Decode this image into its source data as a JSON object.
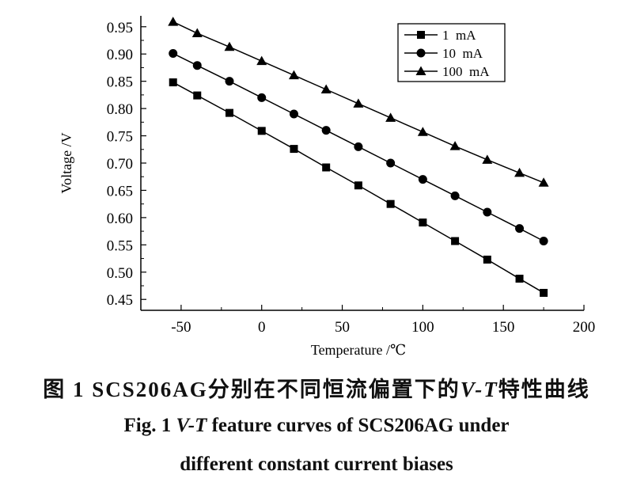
{
  "chart_data": {
    "type": "line",
    "xlabel": "Temperature /℃",
    "ylabel": "Voltage /V",
    "xlim": [
      -75,
      200
    ],
    "ylim": [
      0.43,
      0.97
    ],
    "x_ticks": [
      "-50",
      "0",
      "50",
      "100",
      "150",
      "200"
    ],
    "x_tick_values": [
      -50,
      0,
      50,
      100,
      150,
      200
    ],
    "y_ticks": [
      "0.45",
      "0.50",
      "0.55",
      "0.60",
      "0.65",
      "0.70",
      "0.75",
      "0.80",
      "0.85",
      "0.90",
      "0.95"
    ],
    "y_tick_values": [
      0.45,
      0.5,
      0.55,
      0.6,
      0.65,
      0.7,
      0.75,
      0.8,
      0.85,
      0.9,
      0.95
    ],
    "legend_position": "top-right",
    "grid": false,
    "x": [
      -55,
      -40,
      -20,
      0,
      20,
      40,
      60,
      80,
      100,
      120,
      140,
      160,
      175
    ],
    "series": [
      {
        "name": "1  mA",
        "marker": "square",
        "values": [
          0.848,
          0.824,
          0.792,
          0.759,
          0.726,
          0.692,
          0.659,
          0.625,
          0.591,
          0.557,
          0.523,
          0.488,
          0.462
        ]
      },
      {
        "name": "10  mA",
        "marker": "circle",
        "values": [
          0.901,
          0.879,
          0.85,
          0.82,
          0.79,
          0.76,
          0.73,
          0.7,
          0.67,
          0.64,
          0.61,
          0.58,
          0.557
        ]
      },
      {
        "name": "100  mA",
        "marker": "triangle",
        "values": [
          0.959,
          0.938,
          0.913,
          0.887,
          0.861,
          0.835,
          0.809,
          0.783,
          0.757,
          0.731,
          0.706,
          0.682,
          0.664
        ]
      }
    ]
  },
  "caption": {
    "zh_prefix": "图 1  SCS206AG分别在不同恒流偏置下的",
    "zh_vt": "V-T",
    "zh_suffix": "特性曲线",
    "en1_prefix": "Fig. 1  ",
    "en1_vt": "V-T",
    "en1_suffix": " feature curves of SCS206AG under",
    "en2": "different constant current biases"
  },
  "colors": {
    "line": "#000000",
    "background": "#ffffff"
  }
}
